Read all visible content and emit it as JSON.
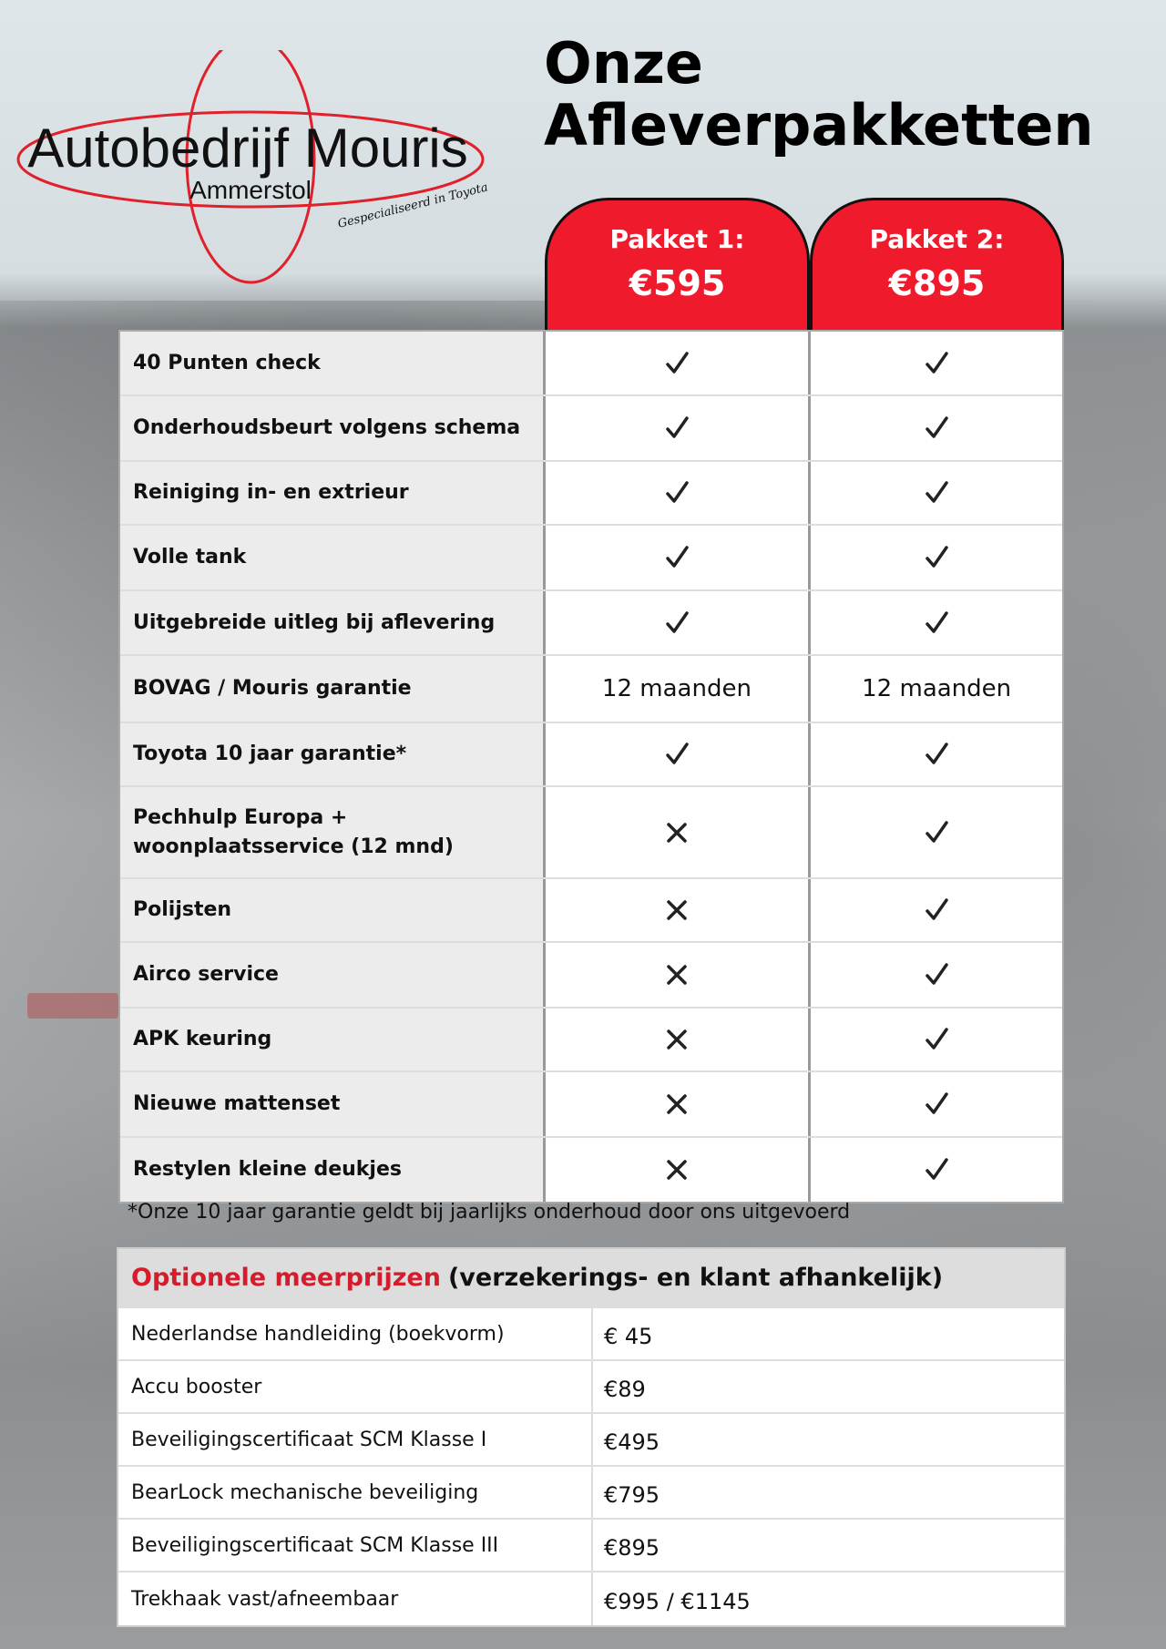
{
  "logo": {
    "name": "Autobedrijf Mouris",
    "place": "Ammerstol",
    "tagline": "Gespecialiseerd in Toyota",
    "color": "#e0202a"
  },
  "title": {
    "line1": "Onze",
    "line2": "Afleverpakketten"
  },
  "packages": [
    {
      "name": "Pakket 1:",
      "price": "€595"
    },
    {
      "name": "Pakket 2:",
      "price": "€895"
    }
  ],
  "accent": "#ef1a2c",
  "features": [
    {
      "label": "40 Punten check",
      "p1": "check",
      "p2": "check"
    },
    {
      "label": "Onderhoudsbeurt volgens schema",
      "p1": "check",
      "p2": "check"
    },
    {
      "label": "Reiniging in- en extrieur",
      "p1": "check",
      "p2": "check"
    },
    {
      "label": "Volle tank",
      "p1": "check",
      "p2": "check"
    },
    {
      "label": "Uitgebreide uitleg bij aflevering",
      "p1": "check",
      "p2": "check"
    },
    {
      "label": "BOVAG / Mouris garantie",
      "p1": "12 maanden",
      "p2": "12 maanden"
    },
    {
      "label": "Toyota 10 jaar garantie*",
      "p1": "check",
      "p2": "check"
    },
    {
      "label": "Pechhulp Europa + woonplaatsservice (12 mnd)",
      "p1": "cross",
      "p2": "check"
    },
    {
      "label": "Polijsten",
      "p1": "cross",
      "p2": "check"
    },
    {
      "label": "Airco service",
      "p1": "cross",
      "p2": "check"
    },
    {
      "label": "APK keuring",
      "p1": "cross",
      "p2": "check"
    },
    {
      "label": "Nieuwe mattenset",
      "p1": "cross",
      "p2": "check"
    },
    {
      "label": "Restylen kleine deukjes",
      "p1": "cross",
      "p2": "check"
    }
  ],
  "footnote": "*Onze 10 jaar garantie geldt bij jaarlijks onderhoud door ons uitgevoerd",
  "optional": {
    "title_red": "Optionele meerprijzen",
    "title_rest": "(verzekerings- en klant afhankelijk)",
    "rows": [
      {
        "item": "Nederlandse handleiding (boekvorm)",
        "price": "€ 45"
      },
      {
        "item": "Accu booster",
        "price": "€89"
      },
      {
        "item": "Beveiligingscertificaat SCM Klasse I",
        "price": "€495"
      },
      {
        "item": "BearLock mechanische beveiliging",
        "price": "€795"
      },
      {
        "item": "Beveiligingscertificaat SCM Klasse III",
        "price": "€895"
      },
      {
        "item": "Trekhaak vast/afneembaar",
        "price": "€995 / €1145"
      }
    ]
  }
}
